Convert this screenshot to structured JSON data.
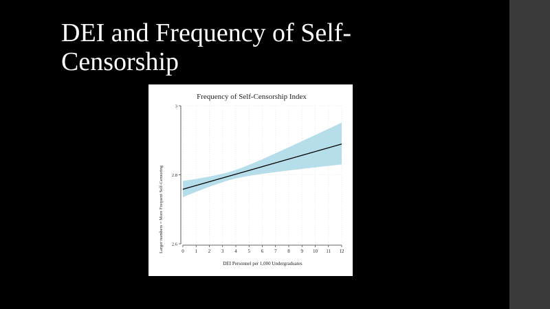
{
  "slide": {
    "title": "DEI and Frequency of Self-Censorship",
    "colors": {
      "background": "#000000",
      "title_text": "#ffffff",
      "side_strip": "#3a3a3a"
    }
  },
  "chart_data": {
    "type": "line",
    "title": "Frequency of Self-Censorship Index",
    "xlabel": "DEI Personnel per 1,000 Undergraduates",
    "ylabel": "Larger numbers = More Frequent Self-Censoring",
    "xlim": [
      0,
      12
    ],
    "ylim": [
      2.6,
      3
    ],
    "x_ticks": [
      "0",
      "1",
      "2",
      "3",
      "4",
      "5",
      "6",
      "7",
      "8",
      "9",
      "10",
      "11",
      "12"
    ],
    "y_ticks": [
      "2.6",
      "2.8",
      "3"
    ],
    "grid": true,
    "series": [
      {
        "x": [
          0,
          12
        ],
        "values": [
          2.758,
          2.889
        ],
        "ci_lower": [
          2.735,
          2.83
        ],
        "ci_upper": [
          2.782,
          2.951
        ],
        "line_color": "#000000",
        "band_color": "#a8d8e6"
      }
    ]
  }
}
